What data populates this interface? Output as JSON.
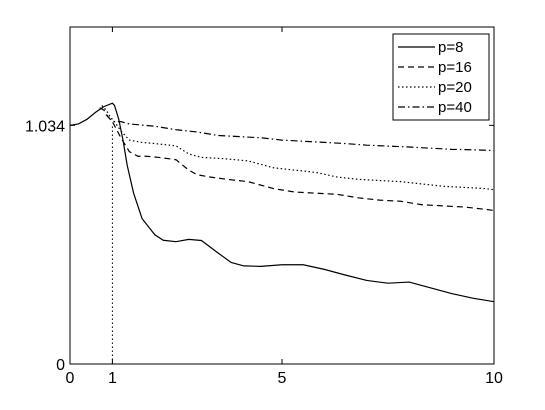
{
  "chart_data": {
    "type": "line",
    "title": "",
    "xlabel": "",
    "ylabel": "",
    "xlim": [
      0,
      10
    ],
    "ylim": [
      0,
      1.46
    ],
    "grid": false,
    "legend_position": "top-right",
    "x_ticks": [
      {
        "value": 0,
        "label": "0"
      },
      {
        "value": 1,
        "label": "1"
      },
      {
        "value": 5,
        "label": "5"
      },
      {
        "value": 10,
        "label": "10"
      }
    ],
    "y_ticks": [
      {
        "value": 0,
        "label": "0"
      },
      {
        "value": 1.034,
        "label": "1.034"
      }
    ],
    "reference_line": {
      "x": 1,
      "y_from": 0,
      "y_to": 1.034,
      "style": "dotted"
    },
    "series": [
      {
        "name": "p=8",
        "style": "solid",
        "x": [
          0,
          0.2,
          0.4,
          0.6,
          0.8,
          1.0,
          1.05,
          1.15,
          1.25,
          1.35,
          1.5,
          1.7,
          2.0,
          2.2,
          2.5,
          2.8,
          3.1,
          3.5,
          3.8,
          4.1,
          4.5,
          5.0,
          5.5,
          6.0,
          6.5,
          7.0,
          7.5,
          8.0,
          8.5,
          9.0,
          9.5,
          10.0
        ],
        "values": [
          1.034,
          1.04,
          1.06,
          1.09,
          1.115,
          1.13,
          1.12,
          1.06,
          0.97,
          0.86,
          0.74,
          0.63,
          0.56,
          0.536,
          0.53,
          0.54,
          0.535,
          0.48,
          0.44,
          0.425,
          0.423,
          0.43,
          0.43,
          0.41,
          0.385,
          0.362,
          0.35,
          0.355,
          0.33,
          0.305,
          0.285,
          0.27
        ]
      },
      {
        "name": "p=16",
        "style": "dashed",
        "x": [
          0.7,
          0.8,
          0.9,
          1.0,
          1.2,
          1.4,
          1.6,
          1.8,
          2.1,
          2.5,
          2.8,
          3.0,
          3.3,
          3.7,
          4.2,
          4.8,
          5.3,
          5.8,
          6.3,
          6.8,
          7.3,
          7.8,
          8.3,
          8.8,
          9.3,
          9.8,
          10.0
        ],
        "values": [
          1.11,
          1.1,
          1.07,
          1.05,
          0.98,
          0.92,
          0.9,
          0.9,
          0.895,
          0.885,
          0.84,
          0.82,
          0.81,
          0.8,
          0.79,
          0.76,
          0.745,
          0.74,
          0.735,
          0.72,
          0.71,
          0.705,
          0.69,
          0.685,
          0.68,
          0.67,
          0.665
        ]
      },
      {
        "name": "p=20",
        "style": "dotted",
        "x": [
          0.75,
          0.85,
          0.95,
          1.05,
          1.2,
          1.4,
          1.7,
          2.0,
          2.5,
          2.8,
          3.1,
          3.6,
          4.2,
          4.8,
          5.3,
          5.8,
          6.3,
          6.8,
          7.3,
          7.8,
          8.3,
          8.8,
          9.3,
          9.8,
          10.0
        ],
        "values": [
          1.12,
          1.1,
          1.07,
          1.05,
          1.01,
          0.97,
          0.96,
          0.955,
          0.945,
          0.91,
          0.895,
          0.89,
          0.88,
          0.85,
          0.84,
          0.83,
          0.81,
          0.8,
          0.795,
          0.79,
          0.78,
          0.77,
          0.765,
          0.76,
          0.755
        ]
      },
      {
        "name": "p=40",
        "style": "dashdot",
        "x": [
          0.85,
          0.95,
          1.05,
          1.2,
          1.4,
          1.7,
          2.0,
          2.5,
          3.0,
          3.5,
          4.0,
          4.5,
          5.0,
          5.5,
          6.0,
          6.5,
          7.0,
          7.5,
          8.0,
          8.5,
          9.0,
          9.5,
          10.0
        ],
        "values": [
          1.08,
          1.06,
          1.05,
          1.05,
          1.04,
          1.035,
          1.03,
          1.015,
          1.005,
          0.99,
          0.985,
          0.98,
          0.97,
          0.965,
          0.96,
          0.955,
          0.948,
          0.944,
          0.94,
          0.935,
          0.93,
          0.928,
          0.925
        ]
      }
    ]
  }
}
